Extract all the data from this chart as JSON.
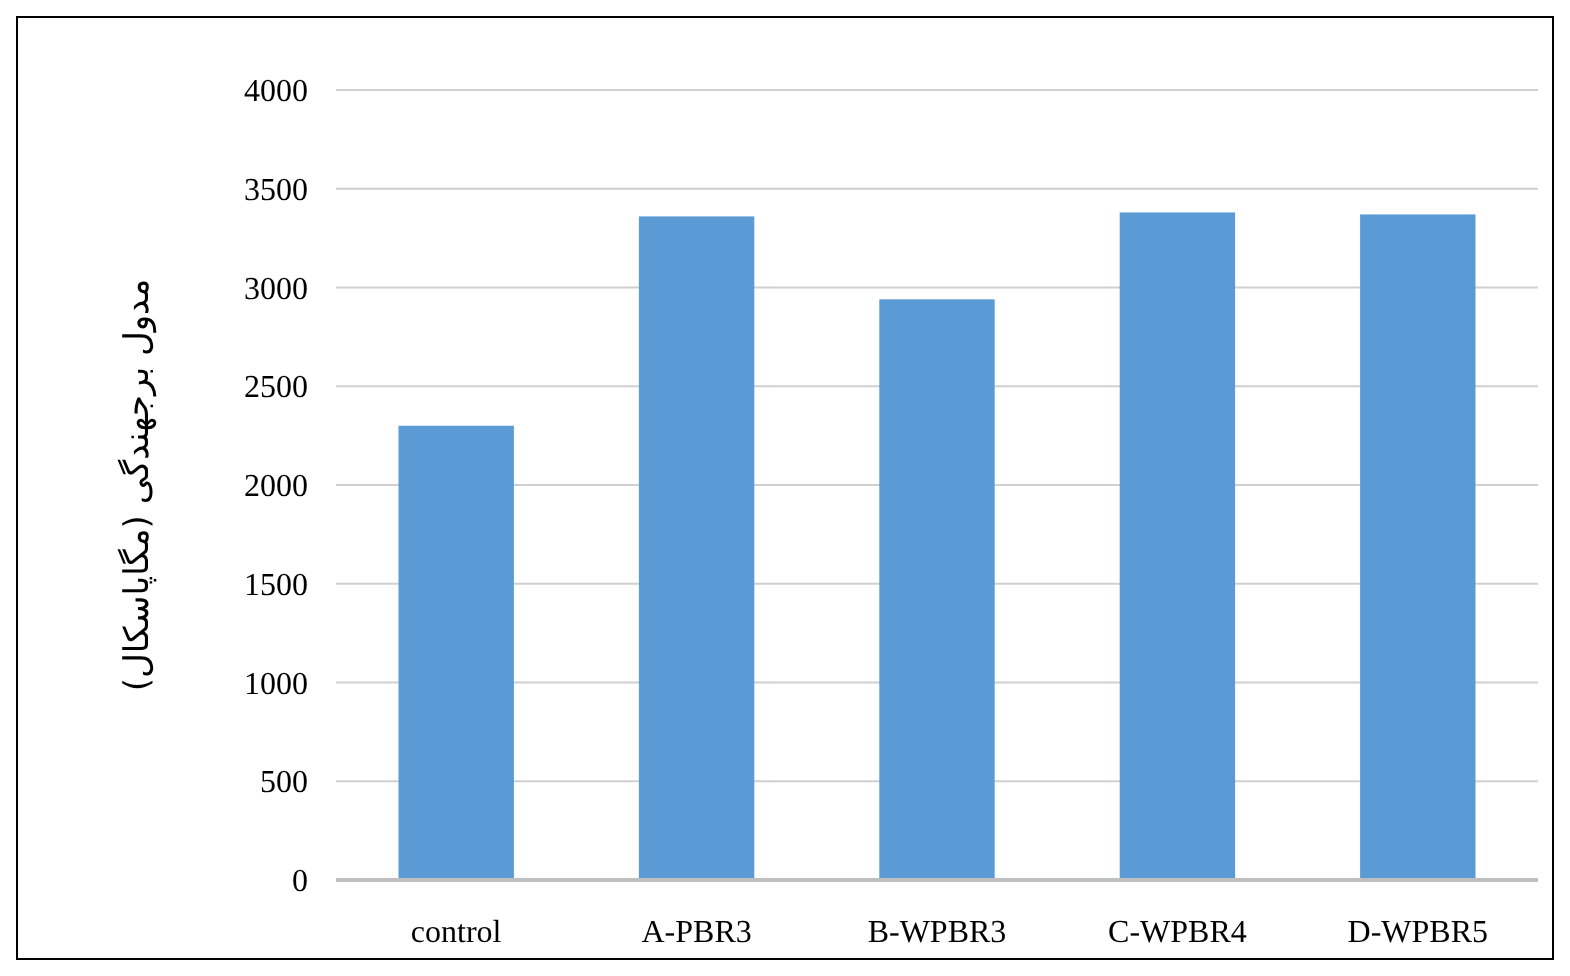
{
  "chart_data": {
    "type": "bar",
    "ylabel": "مدول برجهندگی (مگاپاسکال)",
    "categories": [
      "control",
      "A-PBR3",
      "B-WPBR3",
      "C-WPBR4",
      "D-WPBR5"
    ],
    "values": [
      2300,
      3360,
      2940,
      3380,
      3370
    ],
    "color": "#5b9bd5",
    "ylim": [
      0,
      4000
    ],
    "yticks": [
      0,
      500,
      1000,
      1500,
      2000,
      2500,
      3000,
      3500,
      4000
    ],
    "grid": "y"
  }
}
